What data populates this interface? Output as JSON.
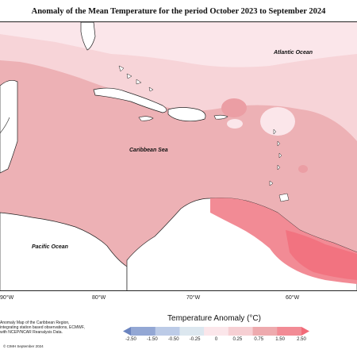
{
  "title": "Anomaly of the Mean Temperature for the period October 2023 to September 2024",
  "labels": {
    "atlantic": "Atlantic Ocean",
    "caribbean": "Caribbean Sea",
    "pacific": "Pacific Ocean"
  },
  "longitudes": [
    "90°W",
    "80°W",
    "70°W",
    "60°W"
  ],
  "legend": {
    "title": "Temperature Anomaly (°C)",
    "ticks": [
      "-2.50",
      "-1.50",
      "-0.50",
      "-0.25",
      "0",
      "0.25",
      "0.75",
      "1.50",
      "2.50"
    ],
    "colors": [
      "#6b84bf",
      "#93a7d4",
      "#bccbe7",
      "#dce7ef",
      "#fbe6ea",
      "#f6cfd3",
      "#eeaaae",
      "#f28b95",
      "#f26a78"
    ]
  },
  "footnote": "Anomaly Map of the Caribbean Region, integrating station based observations, ECMWF, with NCEP/NCAR Reanalysis Data.",
  "credit": "© CIMH September 2024"
}
